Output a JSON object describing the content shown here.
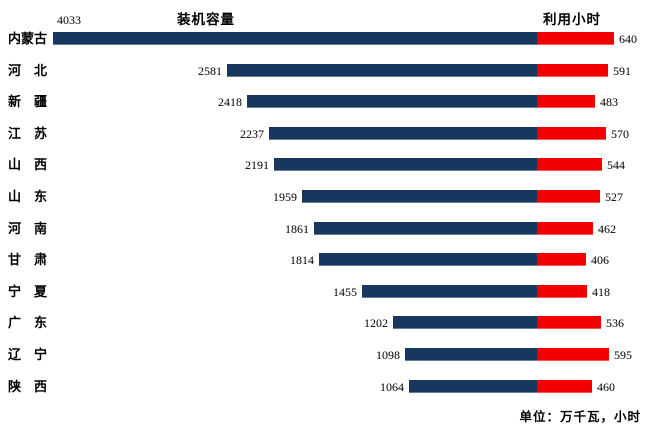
{
  "chart_data": {
    "type": "bar",
    "orientation": "horizontal-diverging",
    "left_title": "装机容量",
    "right_title": "利用小时",
    "unit_note": "单位：万千瓦，小时",
    "categories": [
      "内蒙古",
      "河　北",
      "新　疆",
      "江　苏",
      "山　西",
      "山　东",
      "河　南",
      "甘　肃",
      "宁　夏",
      "广　东",
      "辽　宁",
      "陕　西"
    ],
    "series": [
      {
        "name": "装机容量",
        "side": "left",
        "color": "#17375e",
        "values": [
          4033,
          2581,
          2418,
          2237,
          2191,
          1959,
          1861,
          1814,
          1455,
          1202,
          1098,
          1064
        ]
      },
      {
        "name": "利用小时",
        "side": "right",
        "color": "#f20000",
        "values": [
          640,
          591,
          483,
          570,
          544,
          527,
          462,
          406,
          418,
          536,
          595,
          460
        ]
      }
    ],
    "value_range_left": [
      0,
      4033
    ],
    "value_range_right": [
      0,
      640
    ],
    "gridlines": false,
    "legend": "titles-above-each-side",
    "value_labels": "outside-bar-ends"
  },
  "colors": {
    "capacity": "#17375e",
    "hours": "#f20000",
    "text": "#000000",
    "background": "#ffffff"
  }
}
